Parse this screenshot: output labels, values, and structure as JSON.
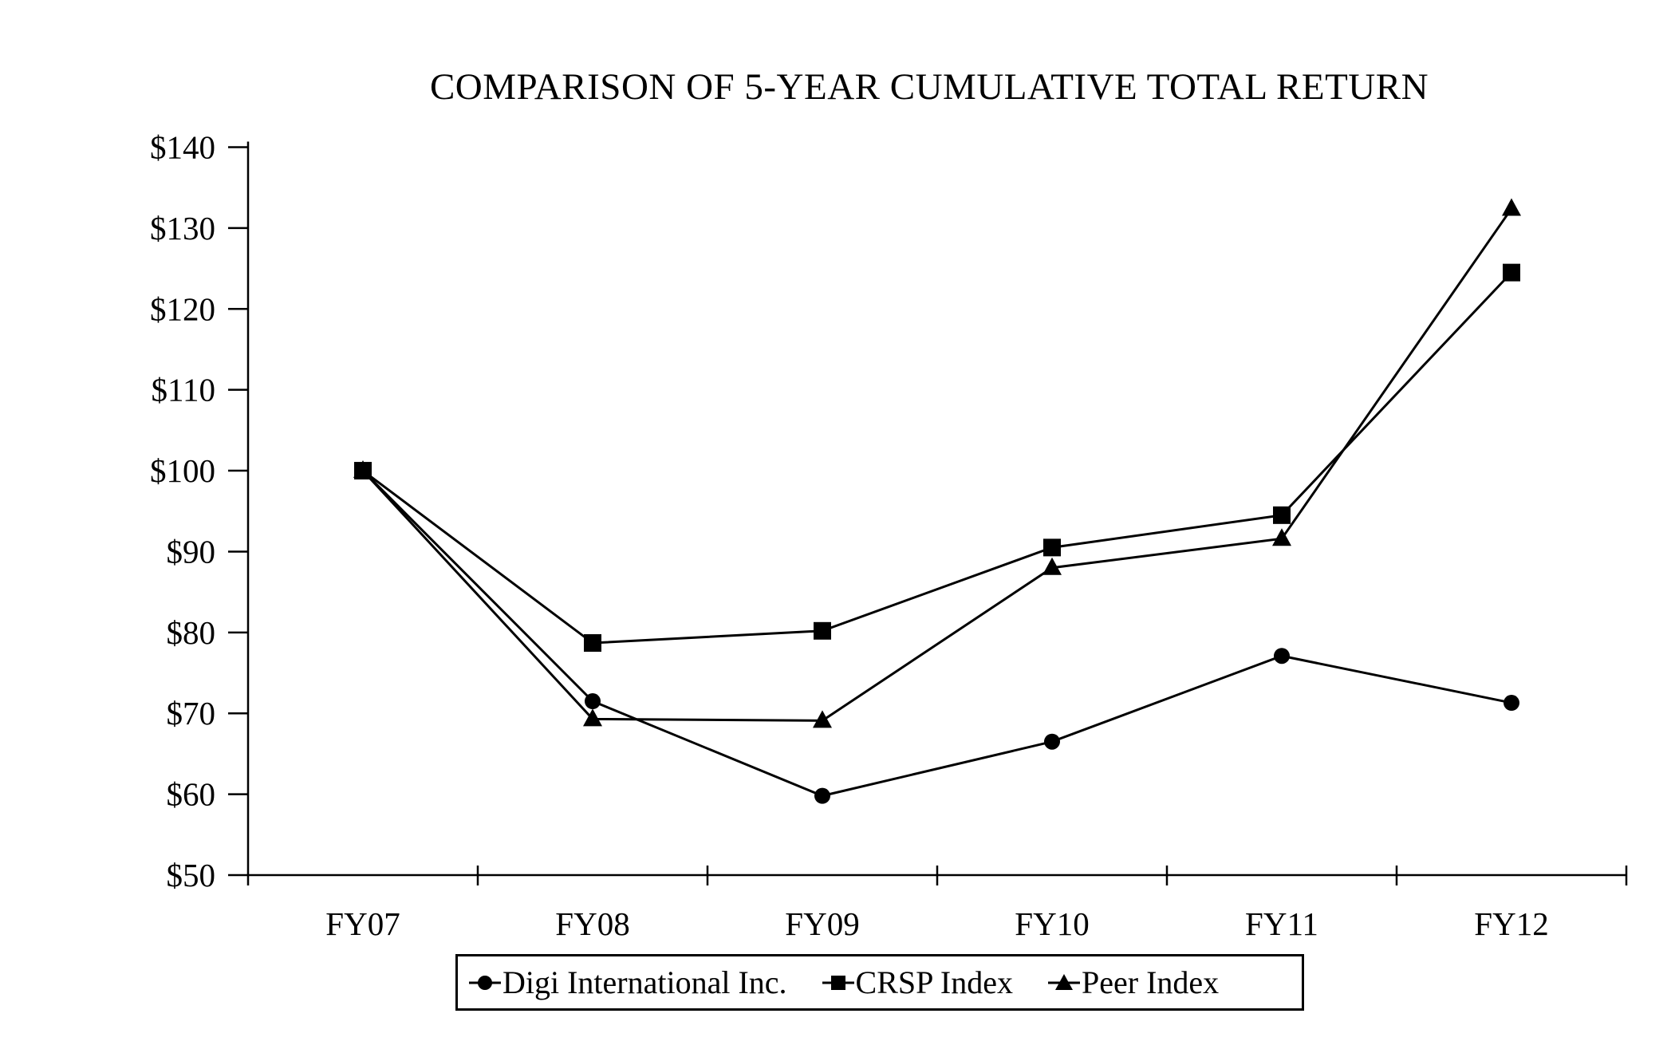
{
  "chart_data": {
    "type": "line",
    "title": "COMPARISON OF 5-YEAR CUMULATIVE TOTAL RETURN",
    "categories": [
      "FY07",
      "FY08",
      "FY09",
      "FY10",
      "FY11",
      "FY12"
    ],
    "series": [
      {
        "name": "Digi International Inc.",
        "marker": "circle",
        "values": [
          100,
          71.5,
          59.8,
          66.5,
          77.1,
          71.3
        ]
      },
      {
        "name": "CRSP Index",
        "marker": "square",
        "values": [
          100,
          78.7,
          80.2,
          90.5,
          94.5,
          124.5
        ]
      },
      {
        "name": "Peer Index",
        "marker": "triangle",
        "values": [
          100,
          69.3,
          69.1,
          88.0,
          91.6,
          132.4
        ]
      }
    ],
    "ylabel": "",
    "xlabel": "",
    "ylim": [
      50,
      140
    ],
    "y_ticks": [
      140,
      130,
      120,
      110,
      100,
      90,
      80,
      70,
      60,
      50
    ],
    "y_tick_prefix": "$",
    "grid": false,
    "legend_position": "bottom",
    "line_color": "#000000",
    "background_color": "#ffffff"
  }
}
